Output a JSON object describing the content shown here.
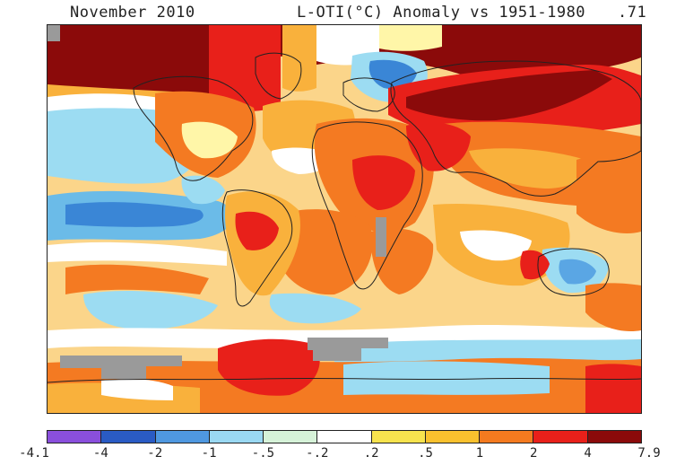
{
  "header": {
    "month": "November 2010",
    "title": "L-OTI(°C) Anomaly vs 1951-1980",
    "global_mean": ".71"
  },
  "map": {
    "projection": "equirectangular",
    "frame": "true",
    "region_colors": {
      "gray_missing": "#9a9a9a",
      "deep_red": "#8b0a0a",
      "red": "#e8201a",
      "orange": "#f47a22",
      "light_orange": "#f9b13c",
      "yellow": "#f7e05a",
      "pale_yellow": "#fff6a8",
      "white": "#ffffff",
      "pale_green": "#d7f2d0",
      "light_blue": "#9cdcf2",
      "blue": "#5aa6e4",
      "mid_blue": "#3a86d6"
    }
  },
  "legend": {
    "colors": [
      "#8a4fdc",
      "#2a5bc4",
      "#4f98e0",
      "#9ad8f2",
      "#d6f2d8",
      "#ffffff",
      "#f7e34e",
      "#f9c12e",
      "#f47a1f",
      "#e8201a",
      "#8b0a0a"
    ],
    "labels": [
      "-4.1",
      "-4",
      "-2",
      "-1",
      "-.5",
      "-.2",
      ".2",
      ".5",
      "1",
      "2",
      "4",
      "7.9"
    ]
  }
}
